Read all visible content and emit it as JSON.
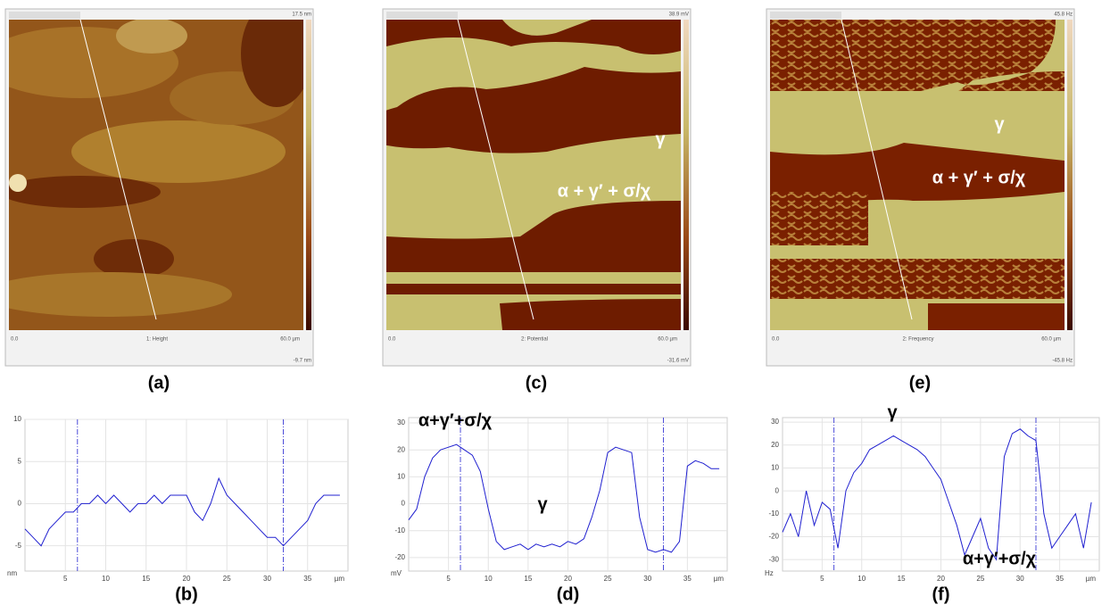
{
  "images": [
    {
      "caption": "(a)",
      "channel": "1: Height",
      "x_start": "0.0",
      "x_end": "60.0 µm",
      "scale_max": "17.5 nm",
      "scale_min": "-9.7 nm",
      "annotations": []
    },
    {
      "caption": "(c)",
      "channel": "2: Potential",
      "x_start": "0.0",
      "x_end": "60.0 µm",
      "scale_max": "38.9 mV",
      "scale_min": "-31.6 mV",
      "annotations": [
        "γ",
        "α + γ′ + σ/χ"
      ]
    },
    {
      "caption": "(e)",
      "channel": "2: Frequency",
      "x_start": "0.0",
      "x_end": "60.0 µm",
      "scale_max": "45.8 Hz",
      "scale_min": "-45.8 Hz",
      "annotations": [
        "γ",
        "α + γ′ + σ/χ"
      ]
    }
  ],
  "chart_data": [
    {
      "type": "line",
      "caption": "(b)",
      "xlabel": "µm",
      "ylabel": "nm",
      "color": "#2020d0",
      "x": [
        0,
        1,
        2,
        3,
        4,
        5,
        6,
        7,
        8,
        9,
        10,
        11,
        12,
        13,
        14,
        15,
        16,
        17,
        18,
        19,
        20,
        21,
        22,
        23,
        24,
        25,
        26,
        27,
        28,
        29,
        30,
        31,
        32,
        33,
        34,
        35,
        36,
        37,
        38,
        39
      ],
      "values": [
        -3,
        -4,
        -5,
        -3,
        -2,
        -1,
        -1,
        0,
        0,
        1,
        0,
        1,
        0,
        -1,
        0,
        0,
        1,
        0,
        1,
        1,
        1,
        -1,
        -2,
        0,
        3,
        1,
        0,
        -1,
        -2,
        -3,
        -4,
        -4,
        -5,
        -4,
        -3,
        -2,
        0,
        1,
        1,
        1
      ],
      "xlim": [
        0,
        40
      ],
      "xticks": [
        5,
        10,
        15,
        20,
        25,
        30,
        35
      ],
      "ylim": [
        -8,
        10
      ],
      "yticks": [
        -5,
        0,
        5,
        10
      ],
      "cursors": [
        6.5,
        32
      ],
      "annotations": []
    },
    {
      "type": "line",
      "caption": "(d)",
      "xlabel": "µm",
      "ylabel": "mV",
      "color": "#2020d0",
      "x": [
        0,
        1,
        2,
        3,
        4,
        5,
        6,
        7,
        8,
        9,
        10,
        11,
        12,
        13,
        14,
        15,
        16,
        17,
        18,
        19,
        20,
        21,
        22,
        23,
        24,
        25,
        26,
        27,
        28,
        29,
        30,
        31,
        32,
        33,
        34,
        35,
        36,
        37,
        38,
        39
      ],
      "values": [
        -6,
        -2,
        10,
        17,
        20,
        21,
        22,
        20,
        18,
        12,
        -2,
        -14,
        -17,
        -16,
        -15,
        -17,
        -15,
        -16,
        -15,
        -16,
        -14,
        -15,
        -13,
        -5,
        5,
        19,
        21,
        20,
        19,
        -5,
        -17,
        -18,
        -17,
        -18,
        -14,
        14,
        16,
        15,
        13,
        13
      ],
      "xlim": [
        0,
        40
      ],
      "xticks": [
        5,
        10,
        15,
        20,
        25,
        30,
        35
      ],
      "ylim": [
        -25,
        32
      ],
      "yticks": [
        -20,
        -10,
        0,
        10,
        20,
        30
      ],
      "cursors": [
        6.5,
        32
      ],
      "annotations": [
        "α+γ′+σ/χ",
        "γ"
      ]
    },
    {
      "type": "line",
      "caption": "(f)",
      "xlabel": "µm",
      "ylabel": "Hz",
      "color": "#2020d0",
      "x": [
        0,
        1,
        2,
        3,
        4,
        5,
        6,
        7,
        8,
        9,
        10,
        11,
        12,
        13,
        14,
        15,
        16,
        17,
        18,
        19,
        20,
        21,
        22,
        23,
        24,
        25,
        26,
        27,
        28,
        29,
        30,
        31,
        32,
        33,
        34,
        35,
        36,
        37,
        38,
        39
      ],
      "values": [
        -18,
        -10,
        -20,
        0,
        -15,
        -5,
        -8,
        -25,
        0,
        8,
        12,
        18,
        20,
        22,
        24,
        22,
        20,
        18,
        15,
        10,
        5,
        -5,
        -15,
        -28,
        -20,
        -12,
        -25,
        -30,
        15,
        25,
        27,
        24,
        22,
        -10,
        -25,
        -20,
        -15,
        -10,
        -25,
        -5
      ],
      "xlim": [
        0,
        40
      ],
      "xticks": [
        5,
        10,
        15,
        20,
        25,
        30,
        35
      ],
      "ylim": [
        -35,
        32
      ],
      "yticks": [
        -30,
        -20,
        -10,
        0,
        10,
        20,
        30
      ],
      "cursors": [
        6.5,
        32
      ],
      "annotations": [
        "γ",
        "α+γ′+σ/χ"
      ]
    }
  ]
}
